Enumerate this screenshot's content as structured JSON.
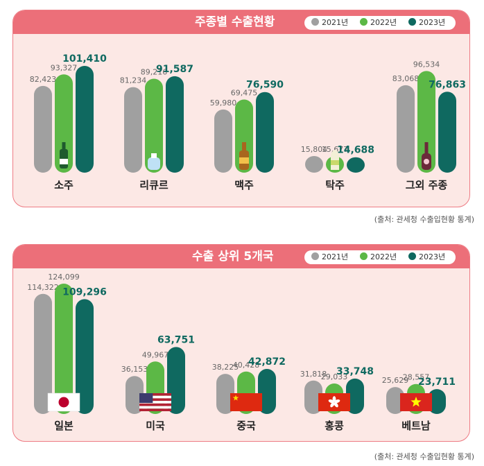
{
  "colors": {
    "y2021": "#a0a0a0",
    "y2022": "#5cb846",
    "y2023": "#0f6960",
    "panel_bg": "#fce8e5",
    "header": "#ec6f79"
  },
  "chart_data": [
    {
      "type": "bar",
      "title": "주종별 수출현황",
      "series": [
        {
          "name": "2021년",
          "values": [
            82423,
            81234,
            59980,
            15804,
            83068
          ]
        },
        {
          "name": "2022년",
          "values": [
            93327,
            89216,
            69475,
            15677,
            96534
          ]
        },
        {
          "name": "2023년",
          "values": [
            101410,
            91587,
            76590,
            14688,
            76863
          ]
        }
      ],
      "value_labels": [
        [
          "82,423",
          "81,234",
          "59,980",
          "15,804",
          "83,068"
        ],
        [
          "93,327",
          "89,216",
          "69,475",
          "15,677",
          "96,534"
        ],
        [
          "101,410",
          "91,587",
          "76,590",
          "14,688",
          "76,863"
        ]
      ],
      "categories": [
        "소주",
        "리큐르",
        "맥주",
        "탁주",
        "그외 주종"
      ],
      "category_icons": [
        "soju-bottle-icon",
        "liqueur-bottle-icon",
        "beer-bottle-icon",
        "makgeolli-bottle-icon",
        "wine-bottle-icon"
      ],
      "legend": "top-right",
      "source": "(출처: 관세청 수출입현황 통계)"
    },
    {
      "type": "bar",
      "title": "수출 상위 5개국",
      "series": [
        {
          "name": "2021년",
          "values": [
            114322,
            36153,
            38225,
            31818,
            25629
          ]
        },
        {
          "name": "2022년",
          "values": [
            124099,
            49967,
            40428,
            29033,
            28557
          ]
        },
        {
          "name": "2023년",
          "values": [
            109296,
            63751,
            42872,
            33748,
            23711
          ]
        }
      ],
      "value_labels": [
        [
          "114,322",
          "36,153",
          "38,225",
          "31,818",
          "25,629"
        ],
        [
          "124,099",
          "49,967",
          "40,428",
          "29,033",
          "28,557"
        ],
        [
          "109,296",
          "63,751",
          "42,872",
          "33,748",
          "23,711"
        ]
      ],
      "categories": [
        "일본",
        "미국",
        "중국",
        "홍콩",
        "베트남"
      ],
      "category_icons": [
        "japan-flag-icon",
        "usa-flag-icon",
        "china-flag-icon",
        "hongkong-flag-icon",
        "vietnam-flag-icon"
      ],
      "legend": "top-right",
      "source": "(출처: 관세청 수출입현황 통계)"
    }
  ]
}
